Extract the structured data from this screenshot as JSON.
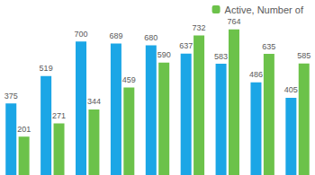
{
  "chart_data": {
    "type": "bar",
    "categories": [
      null,
      null,
      null,
      null,
      null,
      null,
      null,
      null,
      null
    ],
    "series": [
      {
        "color": "#1ba6e6",
        "values": [
          375,
          519,
          700,
          689,
          680,
          637,
          583,
          486,
          405
        ]
      },
      {
        "name": "Active, Number of",
        "color": "#6cc24a",
        "values": [
          201,
          271,
          344,
          459,
          590,
          732,
          764,
          635,
          585
        ]
      }
    ],
    "ylim": [
      0,
      880
    ],
    "grid": false,
    "legend": "top-right",
    "data_labels": true,
    "tick_labels": false
  }
}
